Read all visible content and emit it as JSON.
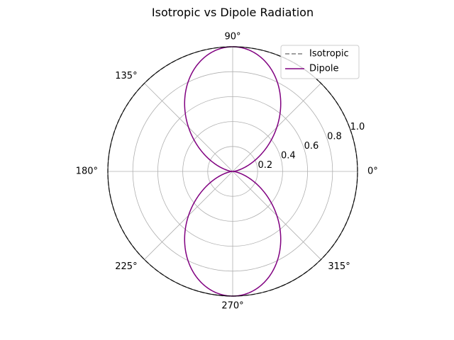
{
  "chart_data": {
    "type": "line",
    "projection": "polar",
    "title": "Isotropic vs Dipole Radiation",
    "angle_unit": "degrees",
    "rlim": [
      0,
      1.0
    ],
    "radial_tick_values": [
      0.2,
      0.4,
      0.6,
      0.8,
      1.0
    ],
    "radial_tick_labels": [
      "0.2",
      "0.4",
      "0.6",
      "0.8",
      "1.0"
    ],
    "angular_tick_values": [
      0,
      45,
      90,
      135,
      180,
      225,
      270,
      315
    ],
    "angular_tick_labels": [
      "0°",
      "",
      "90°",
      "135°",
      "180°",
      "225°",
      "270°",
      "315°"
    ],
    "grid": true,
    "legend_position": "top-right",
    "series": [
      {
        "name": "Isotropic",
        "function": "r = 1",
        "color": "#808080",
        "linestyle": "dashed",
        "theta": [
          0,
          45,
          90,
          135,
          180,
          225,
          270,
          315,
          360
        ],
        "r": [
          1,
          1,
          1,
          1,
          1,
          1,
          1,
          1,
          1
        ]
      },
      {
        "name": "Dipole",
        "function": "r = sin²(θ)",
        "color": "#800080",
        "linestyle": "solid",
        "theta": [
          0,
          45,
          90,
          135,
          180,
          225,
          270,
          315,
          360
        ],
        "r": [
          0,
          0.5,
          1,
          0.5,
          0,
          0.5,
          1,
          0.5,
          0
        ]
      }
    ]
  }
}
